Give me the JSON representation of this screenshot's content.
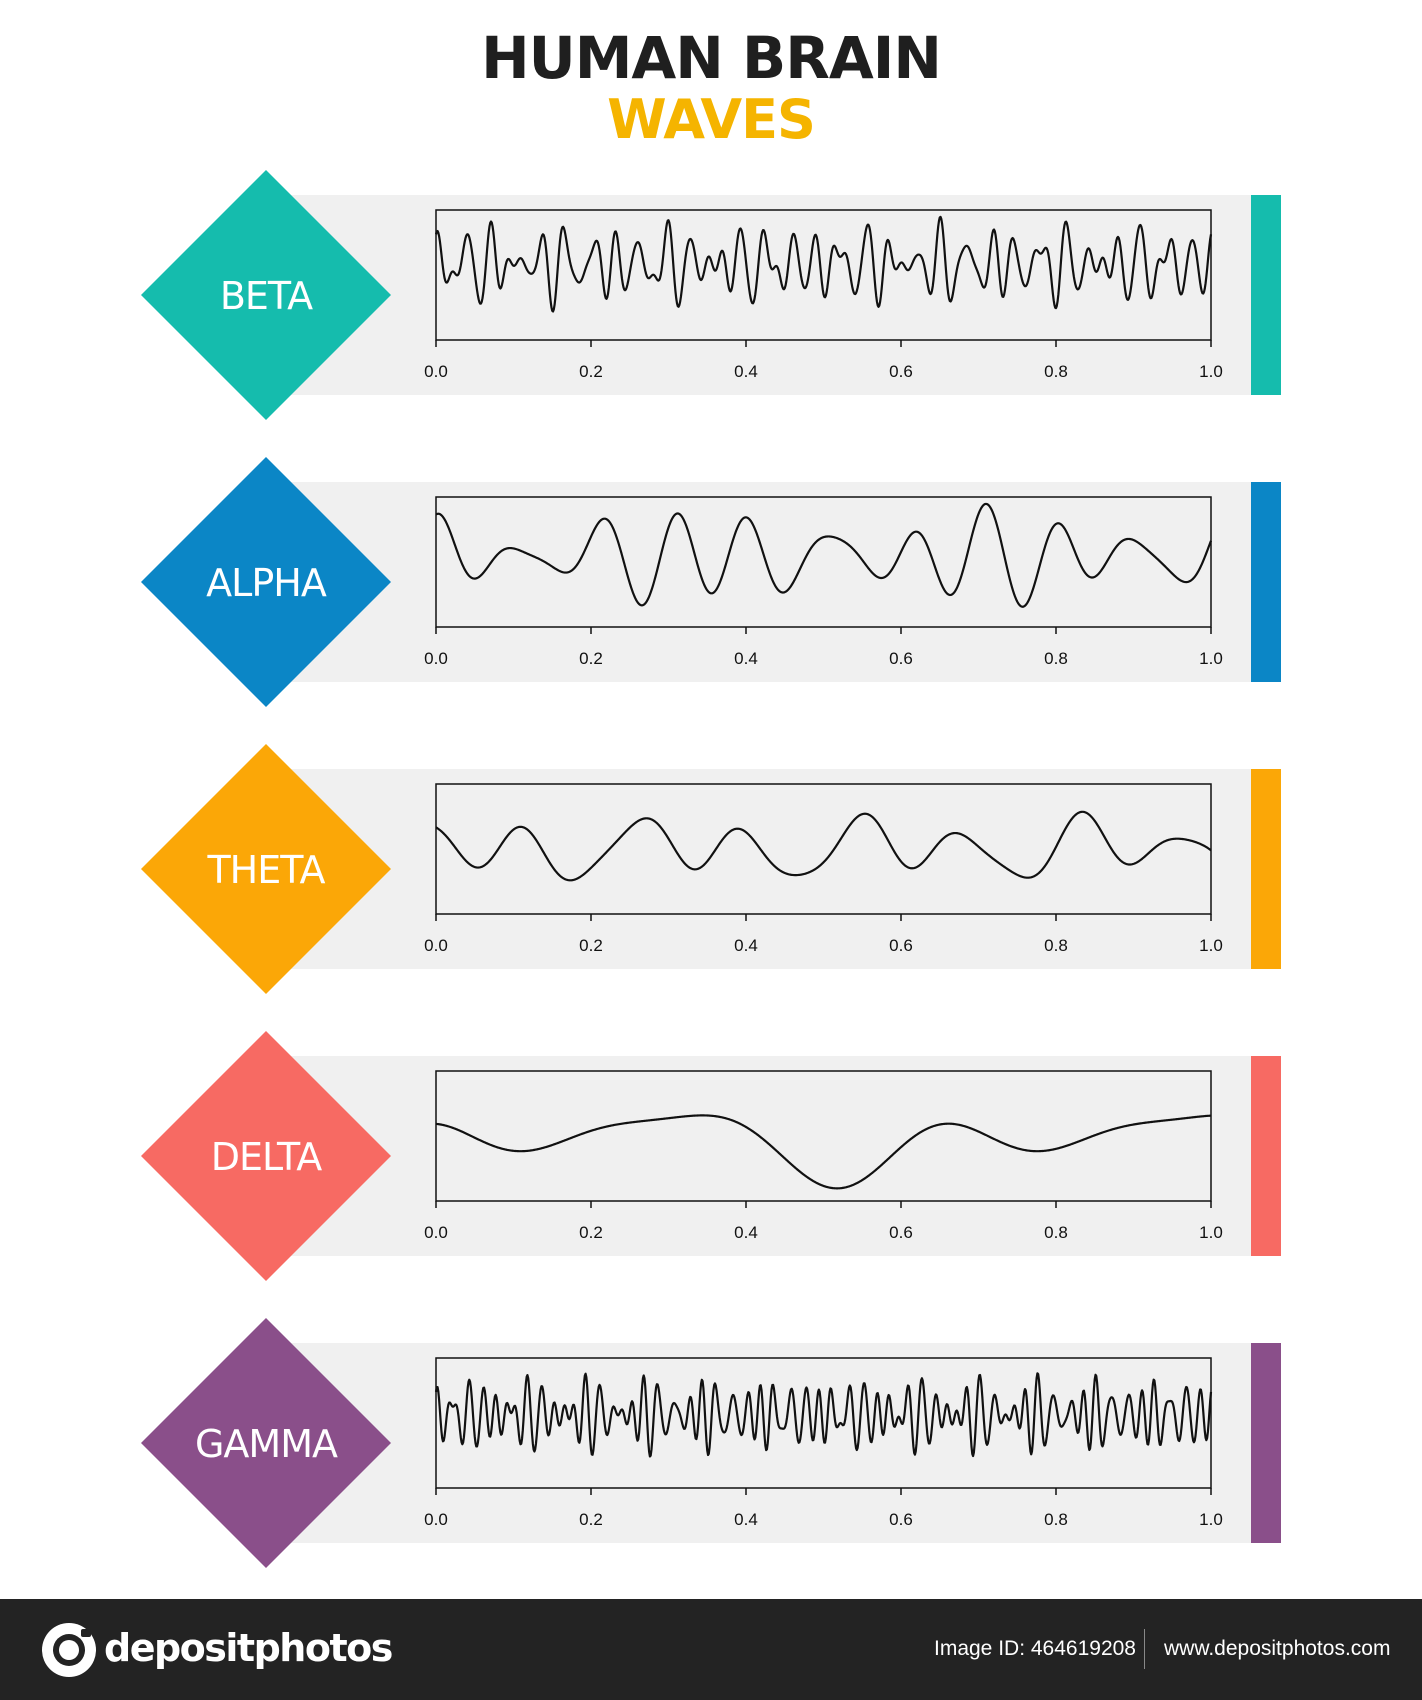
{
  "title": {
    "line1": "HUMAN BRAIN",
    "line2": "WAVES",
    "line1_color": "#1f1f1f",
    "line2_color": "#f5b400"
  },
  "chart_data": [
    {
      "type": "line",
      "label": "BETA",
      "color": "#15bcad",
      "x_ticks": [
        "0.0",
        "0.2",
        "0.4",
        "0.6",
        "0.8",
        "1.0"
      ],
      "xlim": [
        0,
        1
      ],
      "ylim": [
        -1.2,
        1.2
      ],
      "waveform": {
        "baseline": 0.2,
        "components": [
          {
            "amp": 0.4,
            "freq": 31,
            "phase": 0.3
          },
          {
            "amp": 0.28,
            "freq": 43,
            "phase": 1.7
          },
          {
            "amp": 0.15,
            "freq": 23,
            "phase": 2.6
          },
          {
            "amp": 0.1,
            "freq": 57,
            "phase": 0.9
          }
        ]
      }
    },
    {
      "type": "line",
      "label": "ALPHA",
      "color": "#0b86c6",
      "x_ticks": [
        "0.0",
        "0.2",
        "0.4",
        "0.6",
        "0.8",
        "1.0"
      ],
      "xlim": [
        0,
        1
      ],
      "ylim": [
        -1.2,
        1.2
      ],
      "waveform": {
        "baseline": 0.1,
        "components": [
          {
            "amp": 0.55,
            "freq": 10,
            "phase": 1.0
          },
          {
            "amp": 0.3,
            "freq": 12.5,
            "phase": 2.2
          },
          {
            "amp": 0.15,
            "freq": 6,
            "phase": 0.5
          }
        ]
      }
    },
    {
      "type": "line",
      "label": "THETA",
      "color": "#fba707",
      "x_ticks": [
        "0.0",
        "0.2",
        "0.4",
        "0.6",
        "0.8",
        "1.0"
      ],
      "xlim": [
        0,
        1
      ],
      "ylim": [
        -1.2,
        1.2
      ],
      "waveform": {
        "baseline": 0.0,
        "components": [
          {
            "amp": 0.42,
            "freq": 7,
            "phase": 2.8
          },
          {
            "amp": 0.22,
            "freq": 3.5,
            "phase": 1.3
          },
          {
            "amp": 0.12,
            "freq": 11,
            "phase": 0.4
          }
        ]
      }
    },
    {
      "type": "line",
      "label": "DELTA",
      "color": "#f76a63",
      "x_ticks": [
        "0.0",
        "0.2",
        "0.4",
        "0.6",
        "0.8",
        "1.0"
      ],
      "xlim": [
        0,
        1
      ],
      "ylim": [
        -1.2,
        1.2
      ],
      "waveform": {
        "baseline": -0.1,
        "components": [
          {
            "amp": 0.4,
            "freq": 3,
            "phase": 1.6
          },
          {
            "amp": 0.35,
            "freq": 1.5,
            "phase": -0.6
          },
          {
            "amp": 0.18,
            "freq": 4.5,
            "phase": 2.4
          }
        ]
      }
    },
    {
      "type": "line",
      "label": "GAMMA",
      "color": "#8a4f8a",
      "x_ticks": [
        "0.0",
        "0.2",
        "0.4",
        "0.6",
        "0.8",
        "1.0"
      ],
      "xlim": [
        0,
        1
      ],
      "ylim": [
        -1.2,
        1.2
      ],
      "waveform": {
        "baseline": 0.15,
        "components": [
          {
            "amp": 0.35,
            "freq": 53,
            "phase": 0.2
          },
          {
            "amp": 0.25,
            "freq": 67,
            "phase": 1.4
          },
          {
            "amp": 0.18,
            "freq": 41,
            "phase": 2.9
          },
          {
            "amp": 0.1,
            "freq": 79,
            "phase": 0.7
          }
        ]
      }
    }
  ],
  "footer": {
    "brand": "depositphotos",
    "image_id": "Image ID: 464619208",
    "website": "www.depositphotos.com"
  }
}
